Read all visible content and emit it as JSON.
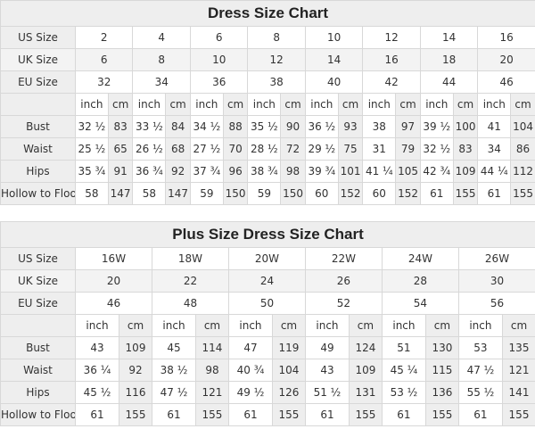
{
  "tables": [
    {
      "title": "Dress Size Chart",
      "size_rows": [
        {
          "label": "US Size",
          "values": [
            "2",
            "4",
            "6",
            "8",
            "10",
            "12",
            "14",
            "16"
          ]
        },
        {
          "label": "UK Size",
          "values": [
            "6",
            "8",
            "10",
            "12",
            "14",
            "16",
            "18",
            "20"
          ]
        },
        {
          "label": "EU Size",
          "values": [
            "32",
            "34",
            "36",
            "38",
            "40",
            "42",
            "44",
            "46"
          ]
        }
      ],
      "units": [
        "inch",
        "cm"
      ],
      "measure_rows": [
        {
          "label": "Bust",
          "values": [
            "32 ½",
            "83",
            "33 ½",
            "84",
            "34 ½",
            "88",
            "35 ½",
            "90",
            "36 ½",
            "93",
            "38",
            "97",
            "39 ½",
            "100",
            "41",
            "104"
          ]
        },
        {
          "label": "Waist",
          "values": [
            "25 ½",
            "65",
            "26 ½",
            "68",
            "27 ½",
            "70",
            "28 ½",
            "72",
            "29 ½",
            "75",
            "31",
            "79",
            "32 ½",
            "83",
            "34",
            "86"
          ]
        },
        {
          "label": "Hips",
          "values": [
            "35 ¾",
            "91",
            "36 ¾",
            "92",
            "37 ¾",
            "96",
            "38 ¾",
            "98",
            "39 ¾",
            "101",
            "41 ¼",
            "105",
            "42 ¾",
            "109",
            "44 ¼",
            "112"
          ]
        },
        {
          "label": "Hollow to Floor",
          "values": [
            "58",
            "147",
            "58",
            "147",
            "59",
            "150",
            "59",
            "150",
            "60",
            "152",
            "60",
            "152",
            "61",
            "155",
            "61",
            "155"
          ]
        }
      ]
    },
    {
      "title": "Plus Size Dress Size Chart",
      "size_rows": [
        {
          "label": "US Size",
          "values": [
            "16W",
            "18W",
            "20W",
            "22W",
            "24W",
            "26W"
          ]
        },
        {
          "label": "UK Size",
          "values": [
            "20",
            "22",
            "24",
            "26",
            "28",
            "30"
          ]
        },
        {
          "label": "EU Size",
          "values": [
            "46",
            "48",
            "50",
            "52",
            "54",
            "56"
          ]
        }
      ],
      "units": [
        "inch",
        "cm"
      ],
      "measure_rows": [
        {
          "label": "Bust",
          "values": [
            "43",
            "109",
            "45",
            "114",
            "47",
            "119",
            "49",
            "124",
            "51",
            "130",
            "53",
            "135"
          ]
        },
        {
          "label": "Waist",
          "values": [
            "36 ¼",
            "92",
            "38 ½",
            "98",
            "40 ¾",
            "104",
            "43",
            "109",
            "45 ¼",
            "115",
            "47 ½",
            "121"
          ]
        },
        {
          "label": "Hips",
          "values": [
            "45 ½",
            "116",
            "47 ½",
            "121",
            "49 ½",
            "126",
            "51 ½",
            "131",
            "53 ½",
            "136",
            "55 ½",
            "141"
          ]
        },
        {
          "label": "Hollow to Floor",
          "values": [
            "61",
            "155",
            "61",
            "155",
            "61",
            "155",
            "61",
            "155",
            "61",
            "155",
            "61",
            "155"
          ]
        }
      ]
    }
  ]
}
